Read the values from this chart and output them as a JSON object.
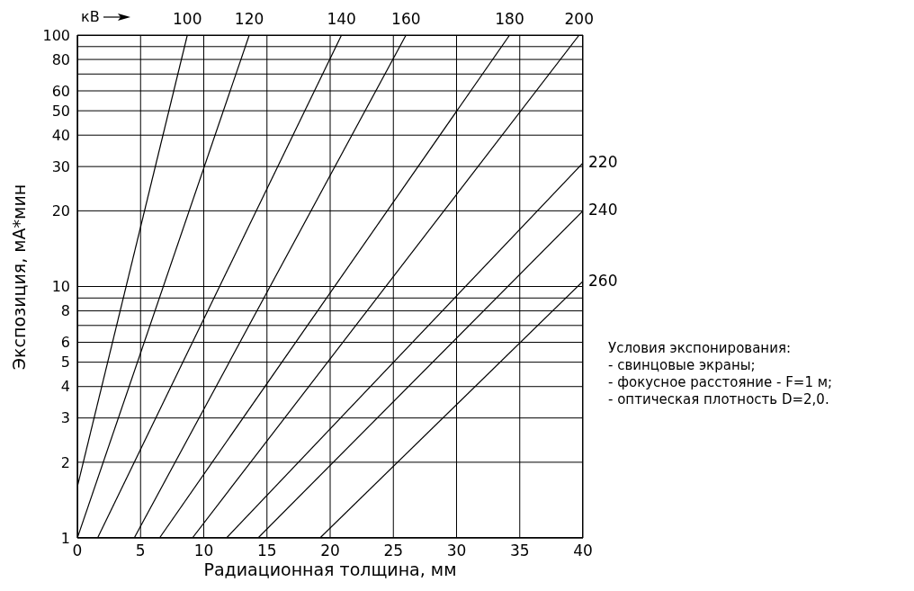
{
  "chart_data": {
    "type": "line",
    "xlabel": "Радиационная толщина, мм",
    "ylabel": "Экспозиция, мА*мин",
    "xlim": [
      0,
      40
    ],
    "xticks": [
      0,
      5,
      10,
      15,
      20,
      25,
      30,
      35,
      40
    ],
    "ylim": [
      1,
      100
    ],
    "yticks": [
      1,
      2,
      3,
      4,
      5,
      6,
      {
        "value": 7,
        "label": null
      },
      8,
      {
        "value": 9,
        "label": null
      },
      10,
      20,
      30,
      40,
      50,
      60,
      {
        "value": 70,
        "label": null
      },
      80,
      {
        "value": 90,
        "label": null
      },
      100
    ],
    "log": "y",
    "grid": true,
    "legend": false,
    "marker": "none",
    "line_style": "solid",
    "series": [
      {
        "name": "100",
        "color": "#000000",
        "x": [
          0,
          8.7
        ],
        "values": [
          1.6,
          100
        ]
      },
      {
        "name": "120",
        "color": "#000000",
        "x": [
          0,
          13.6
        ],
        "values": [
          1,
          100
        ]
      },
      {
        "name": "140",
        "color": "#000000",
        "x": [
          1.6,
          20.9
        ],
        "values": [
          1,
          100
        ]
      },
      {
        "name": "160",
        "color": "#000000",
        "x": [
          4.5,
          26
        ],
        "values": [
          1,
          100
        ]
      },
      {
        "name": "180",
        "color": "#000000",
        "x": [
          6.5,
          34.2
        ],
        "values": [
          1,
          100
        ]
      },
      {
        "name": "200",
        "color": "#000000",
        "x": [
          9.1,
          39.7
        ],
        "values": [
          1,
          100
        ]
      },
      {
        "name": "220",
        "color": "#000000",
        "x": [
          11.8,
          40
        ],
        "values": [
          1,
          31
        ]
      },
      {
        "name": "240",
        "color": "#000000",
        "x": [
          14.3,
          40
        ],
        "values": [
          1,
          20
        ]
      },
      {
        "name": "260",
        "color": "#000000",
        "x": [
          19.2,
          40
        ],
        "values": [
          1,
          10.5
        ]
      }
    ],
    "annotations": [
      "кВ",
      "Условия экспонирования:",
      "- свинцовые экраны;",
      "- фокусное расстояние - F=1 м;",
      "- оптическая плотность D=2,0."
    ]
  }
}
